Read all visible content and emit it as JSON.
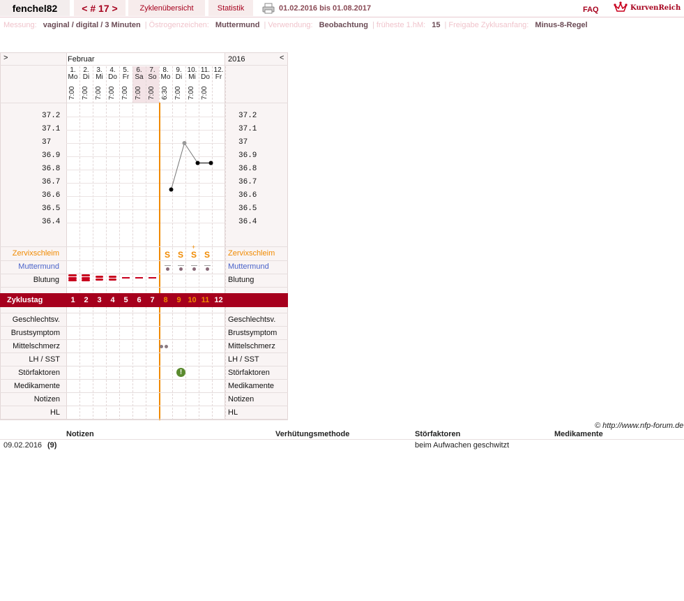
{
  "header": {
    "username": "fenchel82",
    "cycle_nav": "< # 17 >",
    "cycles_link": "Zyklenübersicht",
    "stats_link": "Statistik",
    "date_range": "01.02.2016 bis 01.08.2017",
    "faq": "FAQ",
    "logo_text": "KurvenReich"
  },
  "settings": [
    {
      "key": "Messung:",
      "value": "vaginal / digital / 3 Minuten"
    },
    {
      "key": "Östrogenzeichen:",
      "value": "Muttermund"
    },
    {
      "key": "Verwendung:",
      "value": "Beobachtung"
    },
    {
      "key": "früheste 1.hM:",
      "value": "15"
    },
    {
      "key": "Freigabe Zyklusanfang:",
      "value": "Minus-8-Regel"
    }
  ],
  "chart_nav": {
    "left": ">",
    "right": "<",
    "month": "Februar",
    "year": "2016"
  },
  "days": [
    {
      "num": "1.",
      "wd": "Mo",
      "time": "7:00"
    },
    {
      "num": "2.",
      "wd": "Di",
      "time": "7:00"
    },
    {
      "num": "3.",
      "wd": "Mi",
      "time": "7:00"
    },
    {
      "num": "4.",
      "wd": "Do",
      "time": "7:00"
    },
    {
      "num": "5.",
      "wd": "Fr",
      "time": "7:00"
    },
    {
      "num": "6.",
      "wd": "Sa",
      "time": "7:00"
    },
    {
      "num": "7.",
      "wd": "So",
      "time": "7:00"
    },
    {
      "num": "8.",
      "wd": "Mo",
      "time": "6:30"
    },
    {
      "num": "9.",
      "wd": "Di",
      "time": "7:00"
    },
    {
      "num": "10.",
      "wd": "Mi",
      "time": "7:00"
    },
    {
      "num": "11.",
      "wd": "Do",
      "time": "7:00"
    },
    {
      "num": "12.",
      "wd": "Fr",
      "time": ""
    }
  ],
  "chart_data": {
    "type": "line",
    "ticks": [
      "37.2",
      "37.1",
      "37",
      "36.9",
      "36.8",
      "36.7",
      "36.6",
      "36.5",
      "36.4"
    ],
    "ylim": [
      36.4,
      37.2
    ],
    "points": [
      {
        "day": 8,
        "temp": 36.65
      },
      {
        "day": 9,
        "temp": 37.0
      },
      {
        "day": 10,
        "temp": 36.85
      },
      {
        "day": 11,
        "temp": 36.85
      }
    ]
  },
  "rows": {
    "zervix": "Zervixschleim",
    "muttermund": "Muttermund",
    "blutung": "Blutung",
    "zyklustag": "Zyklustag",
    "geschlecht": "Geschlechtsv.",
    "brust": "Brustsymptom",
    "mittel": "Mittelschmerz",
    "lh": "LH / SST",
    "stoer": "Störfaktoren",
    "medi": "Medikamente",
    "notizen": "Notizen",
    "hl": "HL"
  },
  "zervix_marks": [
    "S",
    "S",
    "S",
    "S"
  ],
  "cycle_days": [
    "1",
    "2",
    "3",
    "4",
    "5",
    "6",
    "7",
    "8",
    "9",
    "10",
    "11",
    "12"
  ],
  "colors": {
    "accent": "#a6001d",
    "orange": "#f08a00",
    "blue": "#4a63c9",
    "bleed": "#c8001e",
    "green": "#5a8a2e"
  },
  "copyright": "© http://www.nfp-forum.de",
  "notes_table": {
    "headers": [
      "Notizen",
      "Verhütungsmethode",
      "Störfaktoren",
      "Medikamente"
    ],
    "row": {
      "date": "09.02.2016",
      "day": "(9)",
      "notes": "",
      "method": "",
      "stoer": "beim Aufwachen geschwitzt",
      "medi": ""
    }
  }
}
